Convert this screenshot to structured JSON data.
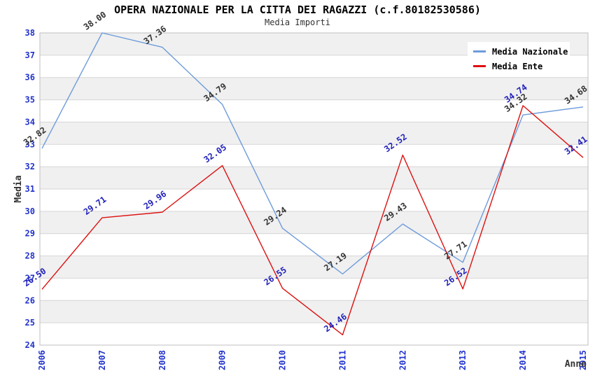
{
  "header": {
    "title": "OPERA NAZIONALE PER LA CITTA DEI RAGAZZI (c.f.80182530586)",
    "subtitle": "Media Importi"
  },
  "legend": {
    "items": [
      {
        "label": "Media Nazionale",
        "color": "#6e9bdc"
      },
      {
        "label": "Media Ente",
        "color": "#dd1111"
      }
    ],
    "position": "top-right inside plot"
  },
  "chart_data": {
    "type": "line",
    "title": "OPERA NAZIONALE PER LA CITTA DEI RAGAZZI (c.f.80182530586)",
    "subtitle": "Media Importi",
    "xlabel": "Anno",
    "ylabel": "Media",
    "categories": [
      "2006",
      "2007",
      "2008",
      "2009",
      "2010",
      "2011",
      "2012",
      "2013",
      "2014",
      "2015"
    ],
    "ylim": [
      24,
      38
    ],
    "ytick_step": 1,
    "grid": "horizontal gridlines with alternating gray bands",
    "series": [
      {
        "name": "Media Nazionale",
        "color": "#6e9bdc",
        "label_color": "#333333",
        "values": [
          32.82,
          38.0,
          37.36,
          34.79,
          29.24,
          27.19,
          29.43,
          27.71,
          34.32,
          34.68
        ]
      },
      {
        "name": "Media Ente",
        "color": "#dd1111",
        "label_color": "#2222bb",
        "values": [
          26.5,
          29.71,
          29.96,
          32.05,
          26.55,
          24.46,
          32.52,
          26.52,
          34.74,
          32.41
        ]
      }
    ]
  },
  "colors": {
    "axis_tick": "#2233cc",
    "band": "#f0f0f0",
    "gridline": "#d6d6d6",
    "plot_border": "#bfbfbf",
    "axis_title": "#333333"
  }
}
